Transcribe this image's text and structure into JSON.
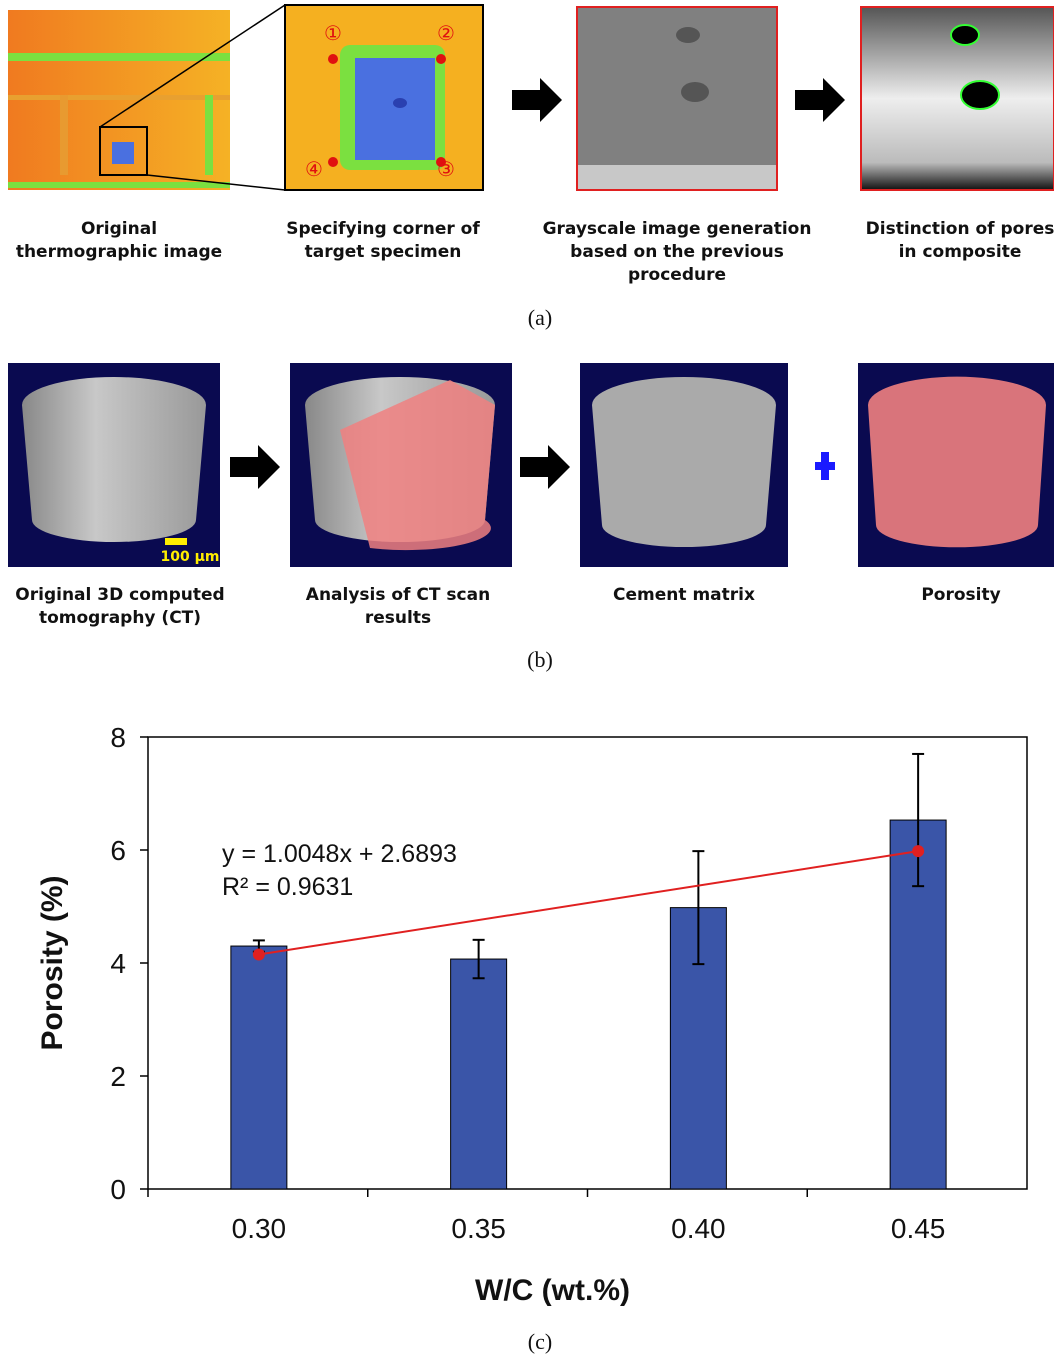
{
  "panel_a": {
    "caption": "(a)",
    "corner_labels": [
      "①",
      "②",
      "③",
      "④"
    ],
    "steps": [
      [
        "Original",
        "thermographic image"
      ],
      [
        "Specifying corner of",
        "target specimen"
      ],
      [
        "Grayscale image generation",
        "based on the previous",
        "procedure"
      ],
      [
        "Distinction of pores",
        "in composite"
      ]
    ]
  },
  "panel_b": {
    "caption": "(b)",
    "scale_bar": "100 μm",
    "steps": [
      [
        "Original 3D computed",
        "tomography (CT)"
      ],
      [
        "Analysis of CT scan",
        "results"
      ],
      [
        "Cement matrix"
      ],
      [
        "Porosity"
      ]
    ]
  },
  "panel_c_caption": "(c)",
  "chart_data": {
    "type": "bar",
    "xlabel": "W/C (wt.%)",
    "ylabel": "Porosity (%)",
    "categories": [
      "0.30",
      "0.35",
      "0.40",
      "0.45"
    ],
    "values": [
      4.3,
      4.07,
      4.98,
      6.53
    ],
    "errors": [
      0.1,
      0.34,
      1.0,
      1.17
    ],
    "color": "#3a55a8",
    "trendline": {
      "color": "#e02020",
      "start": 4.15,
      "end": 5.98
    },
    "annotations": [
      "y = 1.0048x + 2.6893",
      "R² = 0.9631"
    ],
    "ylim": [
      0,
      8
    ],
    "yticks": [
      0,
      2,
      4,
      6,
      8
    ]
  }
}
